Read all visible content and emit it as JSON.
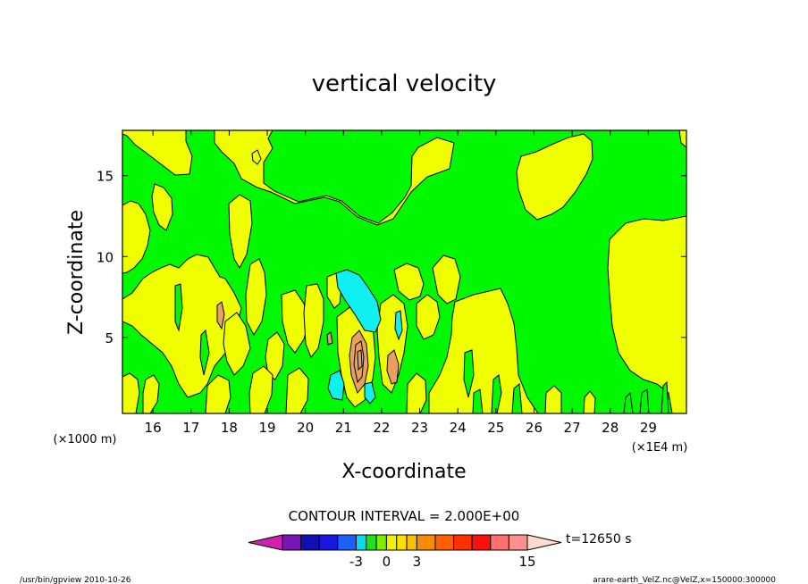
{
  "chart_data": {
    "type": "heatmap",
    "title": "vertical velocity",
    "xlabel": "X-coordinate",
    "ylabel": "Z-coordinate",
    "x_unit_left": "(×1000 m)",
    "x_unit_right": "(×1E4 m)",
    "xlim": [
      15.2,
      30.0
    ],
    "ylim": [
      0.3,
      17.8
    ],
    "xticks": [
      16,
      17,
      18,
      19,
      20,
      21,
      22,
      23,
      24,
      25,
      26,
      27,
      28,
      29
    ],
    "yticks": [
      5,
      10,
      15
    ],
    "contour_interval_text": "CONTOUR INTERVAL = 2.000E+00",
    "time_text": "t=12650 s",
    "colorbar": {
      "bounds": [
        -13,
        -11,
        -9,
        -7,
        -5,
        -3,
        -2,
        -1,
        0,
        1,
        2,
        3,
        5,
        7,
        9,
        11,
        13,
        15,
        17,
        19
      ],
      "colors": [
        "#d020b0",
        "#7a14b8",
        "#1010b0",
        "#1818e0",
        "#1c60ff",
        "#10d8e8",
        "#20e020",
        "#7cf000",
        "#f0f000",
        "#f8e000",
        "#f8c000",
        "#f88c00",
        "#ff6000",
        "#ff3000",
        "#ff1010",
        "#ff7070",
        "#ff9090",
        "#ffb8c0",
        "#ffd8d0"
      ],
      "tick_labels": [
        "-3",
        "0",
        "3",
        "15"
      ],
      "tick_values": [
        -3,
        0,
        3,
        15
      ]
    },
    "levels": [
      {
        "range": "-2 to 0",
        "color": "#00f800"
      },
      {
        "range": "0 to 2",
        "color": "#f0ff00"
      },
      {
        "range": "2 to 4",
        "color": "#e8a060"
      },
      {
        "range": "-4 to -2",
        "color": "#10f0f0"
      }
    ],
    "grid": false
  },
  "footer": {
    "left": "/usr/bin/gpview   2010-10-26",
    "right": "arare-earth_VelZ.nc@VelZ,x=150000:300000"
  }
}
